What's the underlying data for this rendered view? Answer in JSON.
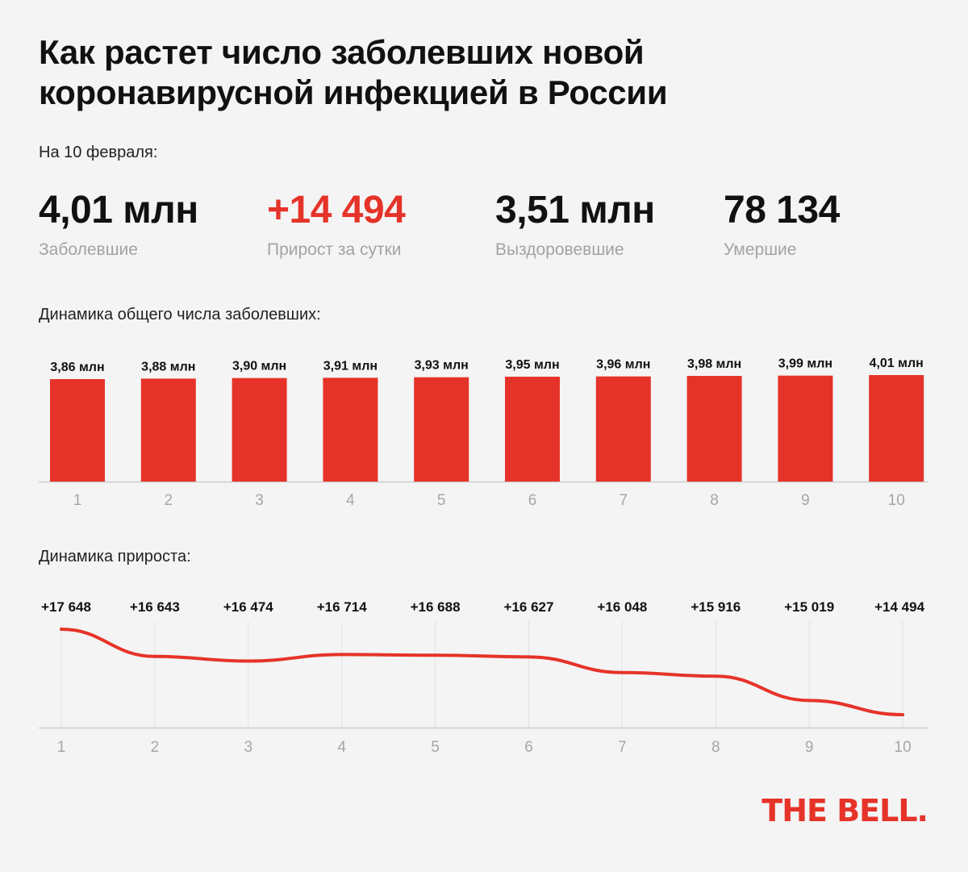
{
  "title": "Как растет число заболевших новой коронавирусной инфекцией в России",
  "date_label": "На 10 февраля:",
  "stats": [
    {
      "value": "4,01 млн",
      "label": "Заболевшие",
      "color": "#111111"
    },
    {
      "value": "+14 494",
      "label": "Прирост за сутки",
      "color": "#e63329"
    },
    {
      "value": "3,51 млн",
      "label": "Выздоровевшие",
      "color": "#111111"
    },
    {
      "value": "78 134",
      "label": "Умершие",
      "color": "#111111"
    }
  ],
  "accent_color": "#e63329",
  "chart_data": [
    {
      "type": "bar",
      "title": "Динамика общего числа заболевших:",
      "categories": [
        "1",
        "2",
        "3",
        "4",
        "5",
        "6",
        "7",
        "8",
        "9",
        "10"
      ],
      "values": [
        3.86,
        3.88,
        3.9,
        3.91,
        3.93,
        3.95,
        3.96,
        3.98,
        3.99,
        4.01
      ],
      "data_labels": [
        "3,86 млн",
        "3,88 млн",
        "3,90 млн",
        "3,91 млн",
        "3,93 млн",
        "3,95 млн",
        "3,96 млн",
        "3,98 млн",
        "3,99 млн",
        "4,01 млн"
      ],
      "color": "#e63329",
      "grid": false
    },
    {
      "type": "line",
      "title": "Динамика прироста:",
      "categories": [
        "1",
        "2",
        "3",
        "4",
        "5",
        "6",
        "7",
        "8",
        "9",
        "10"
      ],
      "values": [
        17648,
        16643,
        16474,
        16714,
        16688,
        16627,
        16048,
        15916,
        15019,
        14494
      ],
      "data_labels": [
        "+17 648",
        "+16 643",
        "+16 474",
        "+16 714",
        "+16 688",
        "+16 627",
        "+16 048",
        "+15 916",
        "+15 019",
        "+14 494"
      ],
      "color": "#e63329",
      "grid": true
    }
  ],
  "logo": "THE BELL."
}
